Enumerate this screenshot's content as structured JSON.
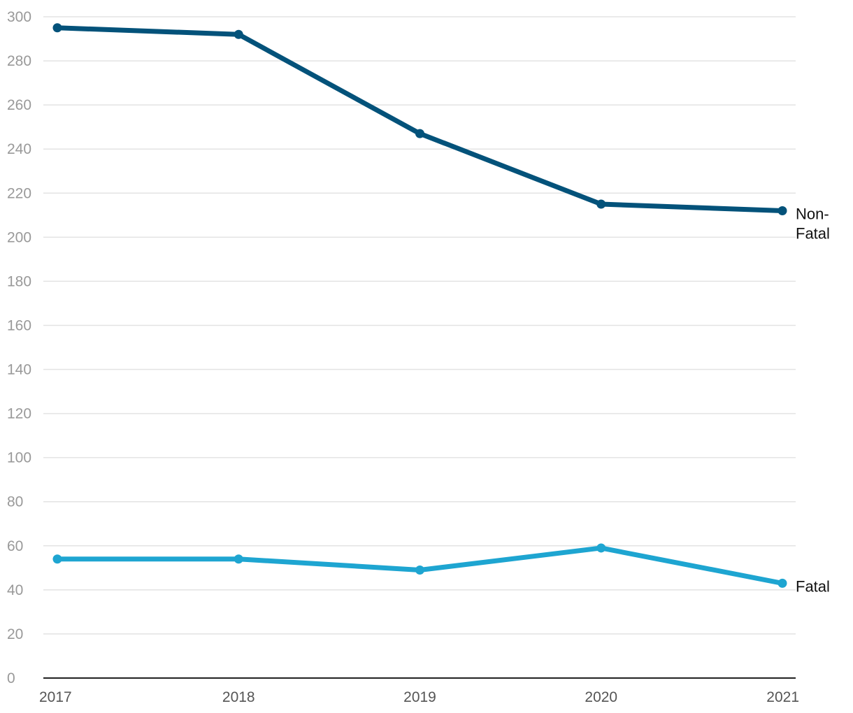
{
  "chart_data": {
    "type": "line",
    "title": "",
    "xlabel": "",
    "ylabel": "",
    "x": [
      "2017",
      "2018",
      "2019",
      "2020",
      "2021"
    ],
    "ylim": [
      0,
      300
    ],
    "y_ticks": [
      "0",
      "20",
      "40",
      "60",
      "80",
      "100",
      "120",
      "140",
      "160",
      "180",
      "200",
      "220",
      "240",
      "260",
      "280",
      "300"
    ],
    "grid": true,
    "legend": "direct labels at line ends",
    "series": [
      {
        "name": "Non-Fatal",
        "label_lines": [
          "Non-",
          "Fatal"
        ],
        "color": "#03527a",
        "values": [
          295,
          292,
          247,
          215,
          212
        ]
      },
      {
        "name": "Fatal",
        "label_lines": [
          "Fatal"
        ],
        "color": "#1ea5d1",
        "values": [
          54,
          54,
          49,
          59,
          43
        ]
      }
    ]
  }
}
